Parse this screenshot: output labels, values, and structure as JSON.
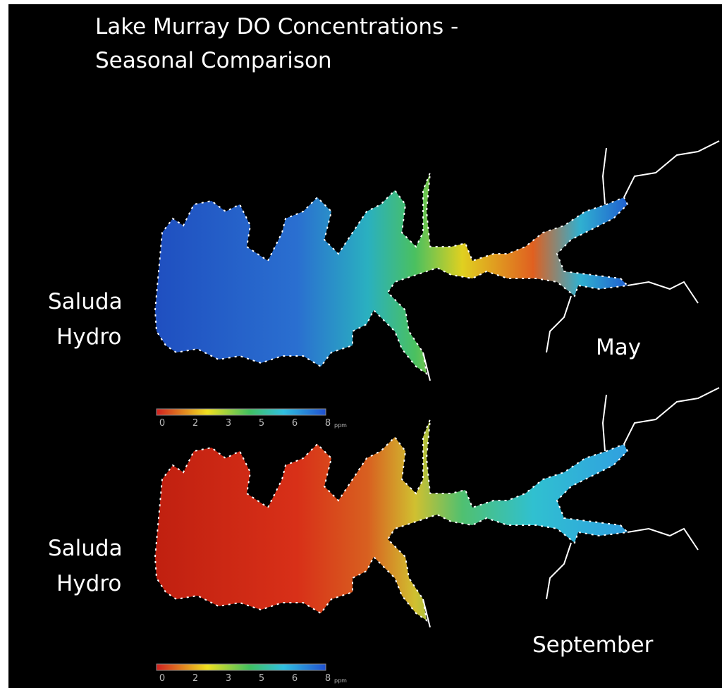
{
  "title": {
    "lines": [
      "Lake Murray DO Concentrations -",
      "Seasonal Comparison"
    ]
  },
  "maps": [
    {
      "dam_label": [
        "Saluda",
        "Hydro"
      ],
      "month": "May"
    },
    {
      "dam_label": [
        "Saluda",
        "Hydro"
      ],
      "month": "September"
    }
  ],
  "legend": {
    "ticks": [
      "0",
      "2",
      "3",
      "5",
      "6",
      "8"
    ],
    "unit": "ppm"
  }
}
